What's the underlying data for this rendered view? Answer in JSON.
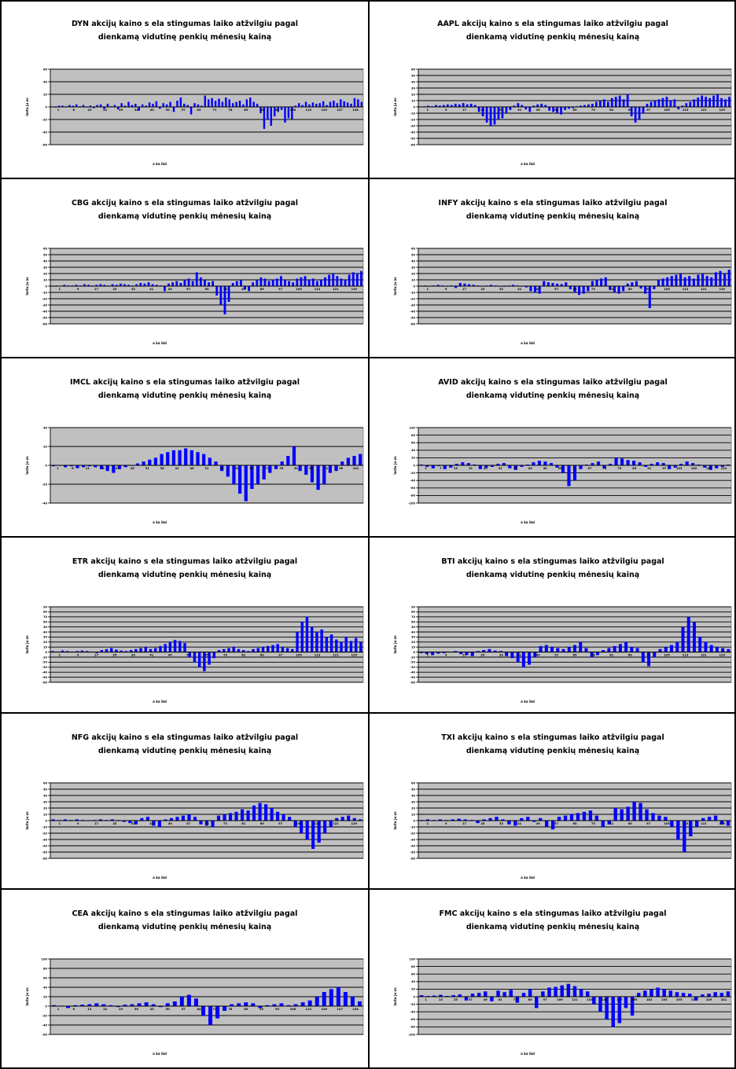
{
  "colors": {
    "plot_bg": "#c0c0c0",
    "bar": "#0000ff",
    "grid": "#000000",
    "frame": "#000000"
  },
  "chart_data": [
    {
      "type": "bar",
      "title_line1": "DYN akcijų kaino s ela stingumas laiko atžvilgiu pagal",
      "title_line2": "dienkamą vidutinę penkių mėnesių kainą",
      "xlabel": "a ka ikd",
      "ylabel": "lastu ju as",
      "ylim": [
        -60,
        60
      ],
      "yticks": [
        "60",
        "40",
        "20",
        "0",
        "-20",
        "-40",
        "-60"
      ],
      "xticks": [
        "1",
        "8",
        "15",
        "22",
        "29",
        "36",
        "43",
        "50",
        "57",
        "64",
        "71",
        "78",
        "85",
        "92",
        "99",
        "106",
        "113",
        "120",
        "127",
        "134"
      ],
      "grid": true,
      "values": [
        0,
        -1,
        2,
        2,
        1,
        3,
        2,
        4,
        1,
        3,
        0,
        2,
        -2,
        3,
        4,
        -3,
        5,
        1,
        3,
        -4,
        6,
        2,
        8,
        3,
        5,
        -6,
        4,
        2,
        7,
        5,
        9,
        -3,
        6,
        4,
        8,
        -8,
        10,
        15,
        5,
        3,
        -12,
        6,
        4,
        2,
        18,
        12,
        14,
        10,
        13,
        8,
        15,
        12,
        6,
        8,
        10,
        4,
        12,
        15,
        8,
        5,
        -10,
        -35,
        -20,
        -30,
        -15,
        -8,
        -5,
        -25,
        -18,
        -20,
        2,
        6,
        3,
        8,
        4,
        7,
        5,
        6,
        9,
        3,
        8,
        10,
        6,
        12,
        9,
        7,
        5,
        14,
        12,
        8
      ]
    },
    {
      "type": "bar",
      "title_line1": "AAPL akcijų kaino s ela stingumas laiko atžvilgiu pagal",
      "title_line2": "dienkamą vidutinę penkių mėnesių kainą",
      "xlabel": "a ka ikd",
      "ylabel": "lastu ju as",
      "ylim": [
        -60,
        60
      ],
      "yticks": [
        "60",
        "50",
        "40",
        "30",
        "20",
        "10",
        "0",
        "-10",
        "-20",
        "-30",
        "-40",
        "-50",
        "-60"
      ],
      "xticks": [
        "1",
        "9",
        "17",
        "25",
        "33",
        "41",
        "49",
        "57",
        "65",
        "73",
        "81",
        "89",
        "97",
        "105",
        "113",
        "121",
        "129"
      ],
      "grid": true,
      "values": [
        0,
        1,
        2,
        1,
        3,
        2,
        3,
        4,
        3,
        5,
        4,
        6,
        4,
        5,
        3,
        -8,
        -15,
        -25,
        -30,
        -28,
        -20,
        -18,
        -10,
        -5,
        2,
        6,
        3,
        -4,
        -8,
        2,
        4,
        5,
        3,
        -6,
        -8,
        -10,
        -12,
        -5,
        -3,
        -2,
        1,
        2,
        3,
        4,
        5,
        8,
        10,
        12,
        8,
        14,
        16,
        18,
        12,
        20,
        -15,
        -25,
        -20,
        -10,
        5,
        8,
        10,
        12,
        14,
        16,
        10,
        12,
        -4,
        2,
        6,
        8,
        12,
        15,
        18,
        16,
        14,
        18,
        20,
        14,
        12,
        16
      ]
    },
    {
      "type": "bar",
      "title_line1": "CBG akcijų kaino s ela stingumas laiko atžvilgiu pagal",
      "title_line2": "dienkamą vidutinę penkių mėnesių kainą",
      "xlabel": "a ka ikd",
      "ylabel": "lastu ju as",
      "ylim": [
        -60,
        60
      ],
      "yticks": [
        "60",
        "50",
        "40",
        "30",
        "20",
        "10",
        "0",
        "-10",
        "-20",
        "-30",
        "-40",
        "-50",
        "-60"
      ],
      "xticks": [
        "1",
        "9",
        "17",
        "25",
        "33",
        "41",
        "49",
        "57",
        "65",
        "73",
        "81",
        "89",
        "97",
        "105",
        "113",
        "121",
        "129"
      ],
      "grid": true,
      "values": [
        0,
        1,
        0,
        2,
        1,
        1,
        2,
        1,
        3,
        2,
        1,
        2,
        3,
        2,
        1,
        3,
        2,
        4,
        3,
        2,
        1,
        3,
        5,
        4,
        6,
        3,
        2,
        1,
        -8,
        4,
        6,
        8,
        5,
        10,
        12,
        8,
        22,
        14,
        10,
        6,
        8,
        -15,
        -30,
        -45,
        -25,
        5,
        8,
        10,
        -5,
        -8,
        6,
        10,
        14,
        12,
        8,
        10,
        12,
        16,
        10,
        8,
        6,
        12,
        14,
        16,
        10,
        12,
        8,
        10,
        14,
        18,
        20,
        16,
        12,
        10,
        18,
        22,
        20,
        24
      ]
    },
    {
      "type": "bar",
      "title_line1": "INFY akcijų kaino s ela stingumas laiko atžvilgiu pagal",
      "title_line2": "dienkamą vidutinę penkių mėnesių kainą",
      "xlabel": "a ka ikd",
      "ylabel": "lastu ju as",
      "ylim": [
        -60,
        60
      ],
      "yticks": [
        "60",
        "50",
        "40",
        "30",
        "20",
        "10",
        "0",
        "-10",
        "-20",
        "-30",
        "-40",
        "-50",
        "-60"
      ],
      "xticks": [
        "1",
        "9",
        "17",
        "25",
        "33",
        "41",
        "49",
        "57",
        "65",
        "73",
        "81",
        "89",
        "97",
        "105",
        "113",
        "121",
        "129"
      ],
      "grid": true,
      "values": [
        0,
        1,
        0,
        1,
        2,
        1,
        0,
        1,
        -3,
        5,
        4,
        3,
        2,
        1,
        0,
        1,
        2,
        1,
        0,
        -1,
        1,
        2,
        1,
        0,
        -2,
        -8,
        -10,
        -12,
        8,
        6,
        5,
        4,
        3,
        6,
        -5,
        -10,
        -14,
        -12,
        -8,
        8,
        10,
        12,
        14,
        -6,
        -10,
        -12,
        -8,
        4,
        6,
        8,
        -4,
        -12,
        -35,
        -5,
        10,
        12,
        14,
        16,
        18,
        20,
        14,
        16,
        12,
        18,
        20,
        16,
        14,
        22,
        24,
        20,
        26
      ]
    },
    {
      "type": "bar",
      "title_line1": "IMCL akcijų kaino s ela stingumas laiko atžvilgiu pagal",
      "title_line2": "dienkamą vidutinę penkių mėnesių kainą",
      "xlabel": "a ka ikd",
      "ylabel": "lastu ju as",
      "ylim": [
        -40,
        40
      ],
      "yticks": [
        "40",
        "20",
        "0",
        "-20",
        "-40"
      ],
      "xticks": [
        "1",
        "6",
        "11",
        "16",
        "21",
        "26",
        "31",
        "36",
        "41",
        "46",
        "51",
        "56",
        "61",
        "66",
        "71",
        "76",
        "81",
        "86",
        "91",
        "96",
        "101"
      ],
      "grid": true,
      "values": [
        -1,
        0,
        -2,
        -1,
        -3,
        -2,
        -1,
        -2,
        -4,
        -6,
        -8,
        -4,
        -2,
        0,
        2,
        4,
        6,
        8,
        12,
        14,
        16,
        16,
        18,
        16,
        14,
        12,
        8,
        4,
        -6,
        -12,
        -20,
        -30,
        -38,
        -25,
        -20,
        -15,
        -8,
        -4,
        4,
        10,
        20,
        -6,
        -10,
        -18,
        -26,
        -20,
        -8,
        -6,
        4,
        8,
        10,
        12
      ]
    },
    {
      "type": "bar",
      "title_line1": "AVID akcijų kaino s ela stingumas laiko atžvilgiu pagal",
      "title_line2": "dienkamą vidutinę penkių mėnesių kainą",
      "xlabel": "a ka ikd",
      "ylabel": "lastu ju as",
      "ylim": [
        -100,
        100
      ],
      "yticks": [
        "100",
        "80",
        "60",
        "40",
        "20",
        "0",
        "-20",
        "-40",
        "-60",
        "-80",
        "-100"
      ],
      "xticks": [
        "1",
        "7",
        "13",
        "19",
        "25",
        "31",
        "37",
        "43",
        "49",
        "55",
        "61",
        "67",
        "73",
        "79",
        "85",
        "91",
        "97",
        "103",
        "109",
        "115",
        "121"
      ],
      "grid": true,
      "values": [
        2,
        -4,
        -8,
        -2,
        -10,
        -6,
        4,
        8,
        6,
        2,
        -10,
        -6,
        -4,
        4,
        6,
        -8,
        -12,
        -4,
        2,
        8,
        12,
        10,
        6,
        -6,
        -20,
        -55,
        -40,
        -10,
        2,
        6,
        10,
        -8,
        4,
        20,
        18,
        14,
        12,
        8,
        -4,
        4,
        8,
        6,
        -10,
        -6,
        4,
        10,
        6,
        2,
        -6,
        -12,
        -8,
        -4,
        2
      ]
    },
    {
      "type": "bar",
      "title_line1": "ETR akcijų kaino s ela stingumas laiko atžvilgiu pagal",
      "title_line2": "dienkamą vidutinę penkių mėnesių kainą",
      "xlabel": "a ka ikd",
      "ylabel": "lastu ju as",
      "ylim": [
        -60,
        90
      ],
      "yticks": [
        "90",
        "80",
        "70",
        "60",
        "50",
        "40",
        "30",
        "20",
        "10",
        "0",
        "-10",
        "-20",
        "-30",
        "-40",
        "-50",
        "-60"
      ],
      "xticks": [
        "1",
        "9",
        "17",
        "25",
        "33",
        "41",
        "49",
        "57",
        "65",
        "73",
        "81",
        "89",
        "97",
        "105",
        "113",
        "121",
        "129"
      ],
      "grid": true,
      "values": [
        2,
        1,
        3,
        2,
        1,
        2,
        3,
        2,
        1,
        -2,
        4,
        6,
        8,
        5,
        3,
        2,
        4,
        6,
        8,
        10,
        6,
        8,
        12,
        16,
        20,
        24,
        22,
        18,
        -10,
        -20,
        -30,
        -38,
        -25,
        -12,
        4,
        6,
        8,
        10,
        6,
        4,
        2,
        6,
        8,
        10,
        12,
        14,
        16,
        10,
        8,
        6,
        40,
        60,
        70,
        50,
        40,
        45,
        30,
        35,
        25,
        20,
        30,
        22,
        28,
        20
      ]
    },
    {
      "type": "bar",
      "title_line1": "BTI akcijų kaino s ela stingumas laiko atžvilgiu pagal",
      "title_line2": "dienkamą vidutinę penkių mėnesių kainą",
      "xlabel": "a ka ikd",
      "ylabel": "lastu ju as",
      "ylim": [
        -60,
        90
      ],
      "yticks": [
        "90",
        "80",
        "70",
        "60",
        "50",
        "40",
        "30",
        "20",
        "10",
        "0",
        "-10",
        "-20",
        "-30",
        "-40",
        "-50",
        "-60"
      ],
      "xticks": [
        "1",
        "9",
        "17",
        "25",
        "33",
        "41",
        "49",
        "57",
        "65",
        "73",
        "81",
        "89",
        "97",
        "105",
        "113",
        "121",
        "129"
      ],
      "grid": true,
      "values": [
        -2,
        -4,
        -6,
        -3,
        -2,
        1,
        2,
        -4,
        -6,
        -8,
        2,
        4,
        6,
        3,
        2,
        -8,
        -12,
        -20,
        -30,
        -25,
        -10,
        12,
        14,
        10,
        8,
        6,
        10,
        14,
        20,
        8,
        -10,
        -6,
        4,
        8,
        12,
        16,
        20,
        10,
        8,
        -20,
        -28,
        -10,
        6,
        10,
        14,
        20,
        50,
        70,
        60,
        30,
        20,
        14,
        10,
        8,
        6
      ]
    },
    {
      "type": "bar",
      "title_line1": "NFG akcijų kaino s ela stingumas laiko atžvilgiu pagal",
      "title_line2": "dienkamą vidutinę penkių mėnesių kainą",
      "xlabel": "a ka ikd",
      "ylabel": "lastu ju as",
      "ylim": [
        -60,
        60
      ],
      "yticks": [
        "60",
        "50",
        "40",
        "30",
        "20",
        "10",
        "0",
        "-10",
        "-20",
        "-30",
        "-40",
        "-50",
        "-60"
      ],
      "xticks": [
        "1",
        "9",
        "17",
        "25",
        "33",
        "41",
        "49",
        "57",
        "65",
        "73",
        "81",
        "89",
        "97",
        "105",
        "113",
        "121",
        "129"
      ],
      "grid": true,
      "values": [
        2,
        1,
        2,
        1,
        2,
        1,
        0,
        1,
        2,
        1,
        2,
        1,
        -2,
        -4,
        -6,
        4,
        6,
        -8,
        -10,
        2,
        4,
        6,
        8,
        10,
        6,
        -6,
        -8,
        -10,
        8,
        10,
        12,
        14,
        18,
        16,
        24,
        28,
        26,
        20,
        14,
        10,
        6,
        -10,
        -20,
        -30,
        -45,
        -35,
        -20,
        -10,
        4,
        6,
        8,
        4,
        2
      ]
    },
    {
      "type": "bar",
      "title_line1": "TXI akcijų kaino s ela stingumas laiko atžvilgiu pagal",
      "title_line2": "dienkamą vidutinę penkių mėnesių kainą",
      "xlabel": "a ka ikd",
      "ylabel": "lastu ju as",
      "ylim": [
        -60,
        60
      ],
      "yticks": [
        "60",
        "50",
        "40",
        "30",
        "20",
        "10",
        "0",
        "-10",
        "-20",
        "-30",
        "-40",
        "-50",
        "-60"
      ],
      "xticks": [
        "1",
        "9",
        "17",
        "25",
        "33",
        "41",
        "49",
        "57",
        "65",
        "73",
        "81",
        "89",
        "97",
        "105",
        "113",
        "121",
        "129"
      ],
      "grid": true,
      "values": [
        1,
        2,
        1,
        2,
        1,
        2,
        3,
        2,
        1,
        -4,
        2,
        4,
        6,
        2,
        -6,
        -8,
        4,
        6,
        -2,
        4,
        -10,
        -14,
        6,
        8,
        10,
        12,
        14,
        16,
        8,
        -10,
        -6,
        20,
        18,
        22,
        30,
        28,
        18,
        12,
        8,
        6,
        -10,
        -30,
        -50,
        -25,
        -10,
        4,
        6,
        8,
        -6,
        -8
      ]
    },
    {
      "type": "bar",
      "title_line1": "CEA akcijų kaino s ela stingumas laiko atžvilgiu pagal",
      "title_line2": "dienkamą vidutinę penkių mėnesių kainą",
      "xlabel": "a ka ikd",
      "ylabel": "lastu ju as",
      "ylim": [
        -60,
        100
      ],
      "yticks": [
        "100",
        "80",
        "60",
        "40",
        "20",
        "0",
        "-20",
        "-40",
        "-60"
      ],
      "xticks": [
        "1",
        "8",
        "15",
        "22",
        "29",
        "36",
        "43",
        "50",
        "57",
        "64",
        "71",
        "78",
        "85",
        "92",
        "99",
        "106",
        "113",
        "120",
        "127",
        "134"
      ],
      "grid": true,
      "values": [
        2,
        1,
        -4,
        2,
        3,
        4,
        6,
        4,
        2,
        -2,
        3,
        4,
        6,
        8,
        4,
        -2,
        6,
        10,
        20,
        24,
        16,
        -20,
        -40,
        -26,
        -10,
        4,
        6,
        8,
        6,
        -4,
        2,
        4,
        6,
        2,
        4,
        8,
        12,
        20,
        30,
        36,
        40,
        30,
        20,
        10
      ]
    },
    {
      "type": "bar",
      "title_line1": "FMC akcijų kaino s ela stingumas laiko atžvilgiu pagal",
      "title_line2": "dienkamą vidutinę penkių mėnesių kainą",
      "xlabel": "a ka ikd",
      "ylabel": "lastu ju as",
      "ylim": [
        -100,
        100
      ],
      "yticks": [
        "100",
        "80",
        "60",
        "40",
        "20",
        "0",
        "-20",
        "-40",
        "-60",
        "-80",
        "-100"
      ],
      "xticks": [
        "1",
        "13",
        "25",
        "37",
        "49",
        "61",
        "73",
        "85",
        "97",
        "109",
        "121",
        "133",
        "145",
        "157",
        "169",
        "181",
        "193",
        "205",
        "217",
        "229",
        "241"
      ],
      "grid": true,
      "values": [
        4,
        2,
        3,
        5,
        2,
        4,
        6,
        -10,
        8,
        10,
        14,
        -12,
        16,
        12,
        18,
        -16,
        10,
        20,
        -30,
        14,
        24,
        26,
        30,
        34,
        28,
        20,
        14,
        -20,
        -40,
        -60,
        -80,
        -70,
        -30,
        -50,
        10,
        16,
        20,
        24,
        20,
        16,
        12,
        10,
        8,
        -10,
        6,
        8,
        12,
        10,
        14
      ]
    }
  ]
}
